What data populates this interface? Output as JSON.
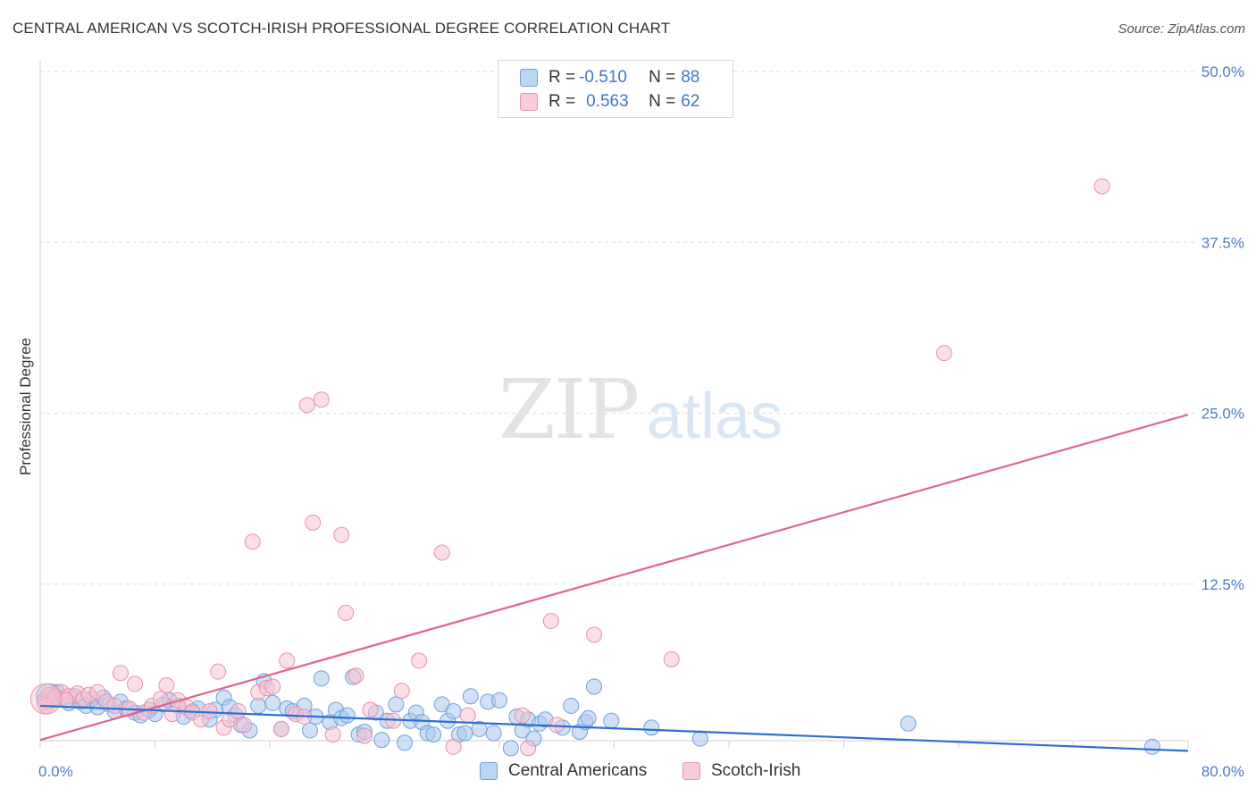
{
  "title": "CENTRAL AMERICAN VS SCOTCH-IRISH PROFESSIONAL DEGREE CORRELATION CHART",
  "source": "Source: ZipAtlas.com",
  "watermark": {
    "zip": "ZIP",
    "atlas": "atlas"
  },
  "legend_top": [
    {
      "r_label": "R =",
      "r_value": "-0.510",
      "n_label": "N =",
      "n_value": "88"
    },
    {
      "r_label": "R =",
      "r_value": "0.563",
      "n_label": "N =",
      "n_value": "62"
    }
  ],
  "legend_bottom": [
    "Central Americans",
    "Scotch-Irish"
  ],
  "colors": {
    "blue_fill": "#aac9f0",
    "blue_stroke": "#6f9fdc",
    "blue_line": "#2f6fd0",
    "pink_fill": "#f7c2d2",
    "pink_stroke": "#e890ac",
    "pink_line": "#e0648e",
    "grid": "#dcdcdc",
    "tick_text": "#4a7cc8"
  },
  "chart_data": {
    "type": "scatter",
    "title": "CENTRAL AMERICAN VS SCOTCH-IRISH PROFESSIONAL DEGREE CORRELATION CHART",
    "xlabel": "",
    "ylabel": "Professional Degree",
    "xlim": [
      0,
      80
    ],
    "ylim": [
      0,
      50
    ],
    "x_tick_labels": [
      "0.0%",
      "80.0%"
    ],
    "y_ticks": [
      12.5,
      25.0,
      37.5,
      50.0
    ],
    "y_tick_labels": [
      "12.5%",
      "25.0%",
      "37.5%",
      "50.0%"
    ],
    "grid": true,
    "series": [
      {
        "name": "Central Americans",
        "r": -0.51,
        "n": 88,
        "trend": {
          "x": [
            0,
            80
          ],
          "y": [
            3.6,
            0.3
          ]
        },
        "points": [
          [
            0.3,
            4.0
          ],
          [
            0.6,
            4.4
          ],
          [
            0.9,
            4.1
          ],
          [
            1.2,
            4.6
          ],
          [
            1.6,
            4.2
          ],
          [
            2.0,
            3.8
          ],
          [
            2.4,
            4.3
          ],
          [
            2.8,
            3.9
          ],
          [
            3.2,
            3.6
          ],
          [
            3.6,
            4.1
          ],
          [
            4.0,
            3.5
          ],
          [
            4.4,
            4.2
          ],
          [
            4.8,
            3.7
          ],
          [
            5.2,
            3.2
          ],
          [
            5.6,
            3.9
          ],
          [
            6.0,
            3.4
          ],
          [
            6.6,
            3.1
          ],
          [
            7.0,
            2.9
          ],
          [
            7.6,
            3.3
          ],
          [
            8.0,
            3.0
          ],
          [
            8.6,
            3.7
          ],
          [
            9.0,
            4.0
          ],
          [
            9.6,
            3.6
          ],
          [
            10.0,
            2.8
          ],
          [
            10.6,
            3.2
          ],
          [
            11.0,
            3.4
          ],
          [
            11.8,
            2.6
          ],
          [
            12.2,
            3.3
          ],
          [
            12.8,
            4.2
          ],
          [
            13.2,
            3.5
          ],
          [
            13.6,
            2.9
          ],
          [
            14.0,
            2.2
          ],
          [
            14.6,
            1.8
          ],
          [
            15.2,
            3.6
          ],
          [
            15.6,
            5.4
          ],
          [
            16.2,
            3.8
          ],
          [
            16.8,
            1.9
          ],
          [
            17.2,
            3.4
          ],
          [
            17.6,
            3.2
          ],
          [
            18.4,
            3.6
          ],
          [
            18.8,
            1.8
          ],
          [
            19.2,
            2.8
          ],
          [
            19.6,
            5.6
          ],
          [
            20.2,
            2.4
          ],
          [
            20.6,
            3.3
          ],
          [
            21.0,
            2.7
          ],
          [
            21.4,
            2.9
          ],
          [
            21.8,
            5.7
          ],
          [
            22.2,
            1.5
          ],
          [
            22.6,
            1.7
          ],
          [
            23.4,
            3.1
          ],
          [
            23.8,
            1.1
          ],
          [
            24.2,
            2.5
          ],
          [
            24.8,
            3.7
          ],
          [
            25.4,
            0.9
          ],
          [
            25.8,
            2.5
          ],
          [
            26.2,
            3.1
          ],
          [
            26.6,
            2.4
          ],
          [
            27.0,
            1.6
          ],
          [
            27.4,
            1.5
          ],
          [
            28.0,
            3.7
          ],
          [
            28.4,
            2.5
          ],
          [
            28.8,
            3.2
          ],
          [
            29.2,
            1.5
          ],
          [
            29.6,
            1.6
          ],
          [
            30.0,
            4.3
          ],
          [
            30.6,
            1.9
          ],
          [
            31.2,
            3.9
          ],
          [
            31.6,
            1.6
          ],
          [
            32.0,
            4.0
          ],
          [
            32.8,
            0.5
          ],
          [
            33.2,
            2.8
          ],
          [
            33.6,
            1.8
          ],
          [
            34.0,
            2.6
          ],
          [
            34.4,
            1.2
          ],
          [
            34.8,
            2.3
          ],
          [
            35.2,
            2.6
          ],
          [
            36.4,
            2.0
          ],
          [
            37.0,
            3.6
          ],
          [
            37.6,
            1.7
          ],
          [
            38.0,
            2.4
          ],
          [
            38.6,
            5.0
          ],
          [
            38.2,
            2.7
          ],
          [
            39.8,
            2.5
          ],
          [
            42.6,
            2.0
          ],
          [
            46.0,
            1.2
          ],
          [
            60.5,
            2.3
          ],
          [
            77.5,
            0.6
          ]
        ]
      },
      {
        "name": "Scotch-Irish",
        "r": 0.563,
        "n": 62,
        "trend": {
          "x": [
            0,
            80
          ],
          "y": [
            1.1,
            24.9
          ]
        },
        "points": [
          [
            0.3,
            3.8
          ],
          [
            0.6,
            4.4
          ],
          [
            1.0,
            4.2
          ],
          [
            1.5,
            4.6
          ],
          [
            2.0,
            4.3
          ],
          [
            2.6,
            4.5
          ],
          [
            3.0,
            4.1
          ],
          [
            3.4,
            4.4
          ],
          [
            4.0,
            4.6
          ],
          [
            4.6,
            3.9
          ],
          [
            5.2,
            3.6
          ],
          [
            5.6,
            6.0
          ],
          [
            6.2,
            3.4
          ],
          [
            6.6,
            5.2
          ],
          [
            7.2,
            3.1
          ],
          [
            7.8,
            3.6
          ],
          [
            8.4,
            4.1
          ],
          [
            8.8,
            5.1
          ],
          [
            9.2,
            3.0
          ],
          [
            9.6,
            4.0
          ],
          [
            10.2,
            3.5
          ],
          [
            10.6,
            3.1
          ],
          [
            11.2,
            2.6
          ],
          [
            11.8,
            3.2
          ],
          [
            12.4,
            6.1
          ],
          [
            12.8,
            2.0
          ],
          [
            13.2,
            2.6
          ],
          [
            13.8,
            3.2
          ],
          [
            14.2,
            2.2
          ],
          [
            14.8,
            15.6
          ],
          [
            15.2,
            4.6
          ],
          [
            15.8,
            4.9
          ],
          [
            16.2,
            5.0
          ],
          [
            16.8,
            1.9
          ],
          [
            17.2,
            6.9
          ],
          [
            17.8,
            3.0
          ],
          [
            18.4,
            2.8
          ],
          [
            18.6,
            25.6
          ],
          [
            19.0,
            17.0
          ],
          [
            19.6,
            26.0
          ],
          [
            20.4,
            1.5
          ],
          [
            21.0,
            16.1
          ],
          [
            21.3,
            10.4
          ],
          [
            22.0,
            5.8
          ],
          [
            22.6,
            1.4
          ],
          [
            23.0,
            3.3
          ],
          [
            24.6,
            2.5
          ],
          [
            25.2,
            4.7
          ],
          [
            26.4,
            6.9
          ],
          [
            28.0,
            14.8
          ],
          [
            28.8,
            0.6
          ],
          [
            29.8,
            2.9
          ],
          [
            33.6,
            2.9
          ],
          [
            34.0,
            0.5
          ],
          [
            35.6,
            9.8
          ],
          [
            36.0,
            2.2
          ],
          [
            38.6,
            8.8
          ],
          [
            44.0,
            7.0
          ],
          [
            63.0,
            29.4
          ],
          [
            74.0,
            41.6
          ],
          [
            0.4,
            3.6
          ],
          [
            1.8,
            4.0
          ]
        ]
      }
    ]
  }
}
